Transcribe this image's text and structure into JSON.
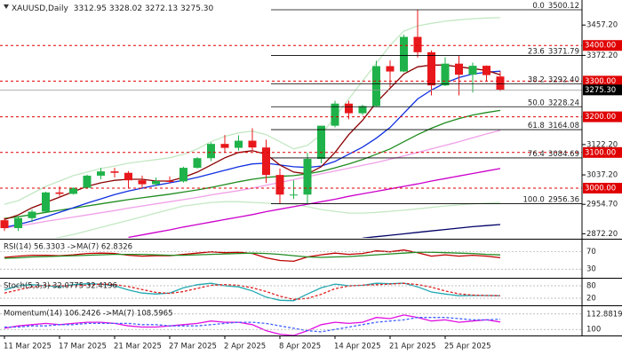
{
  "chart_data": [
    {
      "type": "candlestick",
      "title": "XAUUSD,Daily",
      "subtitle": "3312.95 3328.02 3272.13 3275.30",
      "categories": [
        "11 Mar 2025",
        null,
        null,
        null,
        "17 Mar 2025",
        null,
        null,
        null,
        "21 Mar 2025",
        null,
        null,
        null,
        "27 Mar 2025",
        null,
        null,
        null,
        "2 Apr 2025",
        null,
        null,
        null,
        "8 Apr 2025",
        null,
        null,
        null,
        "14 Apr 2025",
        null,
        null,
        null,
        "21 Apr 2025",
        null,
        null,
        null,
        "25 Apr 2025",
        null,
        null,
        null,
        null
      ],
      "open": [
        2910,
        2888,
        2916,
        2934,
        2988,
        2984,
        3001,
        3035,
        3047,
        3043,
        3022,
        3011,
        3020,
        3019,
        3057,
        3084,
        3124,
        3113,
        3133,
        3114,
        3037,
        2982,
        2982,
        3082,
        3175,
        3237,
        3210,
        3230,
        3342,
        3327,
        3424,
        3381,
        3288,
        3349,
        3318,
        3343,
        3312.95
      ],
      "high": [
        2917,
        2922,
        2940,
        2990,
        3005,
        3002,
        3038,
        3057,
        3057,
        3048,
        3035,
        3030,
        3033,
        3060,
        3087,
        3128,
        3149,
        3148,
        3168,
        3136,
        3055,
        3022,
        3099,
        3175,
        3245,
        3245,
        3234,
        3357,
        3358,
        3430,
        3500.12,
        3386,
        3367,
        3371,
        3352,
        3344,
        3328.02
      ],
      "low": [
        2880,
        2880,
        2905,
        2930,
        2978,
        2982,
        2998,
        3025,
        3030,
        2999,
        3000,
        3006,
        3013,
        3016,
        3055,
        3076,
        3100,
        3105,
        3104,
        3015,
        2957,
        2970,
        2957,
        3070,
        3170,
        3193,
        3205,
        3229,
        3283,
        3325,
        3366,
        3260,
        3286,
        3260,
        3268,
        3300,
        3272.13
      ],
      "close": [
        2888,
        2916,
        2934,
        2988,
        2984,
        3001,
        3035,
        3047,
        3043,
        3022,
        3011,
        3020,
        3019,
        3057,
        3084,
        3124,
        3113,
        3133,
        3114,
        3037,
        2982,
        2982,
        3082,
        3175,
        3237,
        3210,
        3230,
        3342,
        3327,
        3424,
        3381,
        3288,
        3349,
        3318,
        3343,
        3317,
        3275.3
      ],
      "up_color": "#1fb24a",
      "down_color": "#e8171b",
      "series": [
        {
          "color": "#c4e8c4",
          "values": [
            2955,
            2965,
            2985,
            3005,
            3020,
            3035,
            3045,
            3055,
            3062,
            3070,
            3075,
            3080,
            3085,
            3095,
            3110,
            3130,
            3145,
            3155,
            3160,
            3150,
            3130,
            3110,
            3120,
            3150,
            3200,
            3250,
            3300,
            3350,
            3400,
            3440,
            3455,
            3462,
            3468,
            3472,
            3475,
            3477,
            3478
          ]
        },
        {
          "color": "#c4e8c4",
          "values": [
            2842,
            2845,
            2850,
            2855,
            2862,
            2870,
            2880,
            2890,
            2900,
            2910,
            2920,
            2930,
            2940,
            2950,
            2955,
            2960,
            2962,
            2962,
            2960,
            2958,
            2956,
            2955,
            2948,
            2940,
            2935,
            2930,
            2930,
            2932,
            2935,
            2938,
            2942,
            2946,
            2950,
            2953,
            2956,
            2958,
            2960
          ]
        },
        {
          "color": "#000066",
          "values": [
            null,
            null,
            null,
            null,
            null,
            null,
            null,
            null,
            null,
            null,
            null,
            null,
            null,
            null,
            null,
            null,
            null,
            null,
            null,
            null,
            null,
            null,
            null,
            null,
            null,
            null,
            2860,
            2864,
            2868,
            2872,
            2876,
            2880,
            2884,
            2888,
            2892,
            2895,
            2898
          ]
        },
        {
          "color": "#cc00cc",
          "values": [
            null,
            null,
            null,
            null,
            null,
            null,
            null,
            null,
            null,
            2862,
            2869,
            2876,
            2883,
            2891,
            2898,
            2905,
            2912,
            2919,
            2926,
            2934,
            2941,
            2948,
            2955,
            2962,
            2969,
            2977,
            2984,
            2991,
            2998,
            3005,
            3012,
            3020,
            3027,
            3034,
            3041,
            3048,
            3055
          ]
        },
        {
          "color": "#f0a0e8",
          "values": [
            2888,
            2894,
            2900,
            2907,
            2913,
            2919,
            2925,
            2931,
            2937,
            2944,
            2950,
            2956,
            2962,
            2968,
            2974,
            2981,
            2987,
            2993,
            3000,
            3008,
            3016,
            3024,
            3032,
            3040,
            3048,
            3056,
            3064,
            3072,
            3081,
            3090,
            3100,
            3110,
            3120,
            3130,
            3141,
            3152,
            3162
          ]
        },
        {
          "color": "#1f8c1f",
          "values": [
            2915,
            2920,
            2926,
            2932,
            2938,
            2944,
            2950,
            2956,
            2962,
            2968,
            2973,
            2978,
            2983,
            2989,
            2995,
            3002,
            3010,
            3018,
            3025,
            3030,
            3033,
            3035,
            3040,
            3047,
            3057,
            3068,
            3080,
            3095,
            3110,
            3130,
            3150,
            3168,
            3183,
            3195,
            3205,
            3212,
            3218
          ]
        },
        {
          "color": "#1030e0",
          "values": [
            2890,
            2898,
            2908,
            2920,
            2932,
            2945,
            2958,
            2970,
            2982,
            2992,
            3000,
            3008,
            3015,
            3022,
            3030,
            3040,
            3050,
            3060,
            3068,
            3070,
            3065,
            3060,
            3058,
            3062,
            3075,
            3095,
            3115,
            3140,
            3170,
            3210,
            3250,
            3275,
            3295,
            3310,
            3320,
            3325,
            3328
          ]
        },
        {
          "color": "#8b0000",
          "values": [
            2912,
            2925,
            2945,
            2960,
            2975,
            2990,
            3005,
            3015,
            3022,
            3025,
            3025,
            3020,
            3020,
            3030,
            3045,
            3065,
            3085,
            3100,
            3105,
            3095,
            3065,
            3045,
            3040,
            3060,
            3100,
            3150,
            3190,
            3240,
            3280,
            3320,
            3340,
            3345,
            3345,
            3340,
            3335,
            3330,
            3318
          ]
        }
      ],
      "fib_levels": [
        {
          "ratio": "0.0",
          "value": 3500.12,
          "label": "3500.12"
        },
        {
          "ratio": "23.6",
          "value": 3371.79,
          "label": "3371.79"
        },
        {
          "ratio": "38.2",
          "value": 3292.4,
          "label": "3292.40"
        },
        {
          "ratio": "50.0",
          "value": 3228.24,
          "label": "3228.24"
        },
        {
          "ratio": "61.8",
          "value": 3164.08,
          "label": "3164.08"
        },
        {
          "ratio": "76.4",
          "value": 3084.69,
          "label": "3084.69"
        },
        {
          "ratio": "100.0",
          "value": 2956.36,
          "label": "2956.36"
        }
      ],
      "levels": [
        {
          "value": 3400,
          "label": "3400.00"
        },
        {
          "value": 3300,
          "label": "3300.00"
        },
        {
          "value": 3200,
          "label": "3200.00"
        },
        {
          "value": 3100,
          "label": "3100.00"
        },
        {
          "value": 3000,
          "label": "3000.00"
        }
      ],
      "level_color": "#e00000",
      "last": {
        "value": 3275.3,
        "label": "3275.30"
      },
      "ylim": [
        2860.7,
        3527.4
      ],
      "yticks": [
        {
          "value": 3457.2,
          "label": "3457.20"
        },
        {
          "value": 3372.2,
          "label": "3372.20"
        },
        {
          "value": 3122.2,
          "label": "3122.20"
        },
        {
          "value": 3037.2,
          "label": "3037.20"
        },
        {
          "value": 2954.7,
          "label": "2954.70"
        },
        {
          "value": 2872.2,
          "label": "2872.20"
        }
      ]
    },
    {
      "type": "line",
      "title": "RSI(14) 56.3303 ->MA(7) 62.8326",
      "ylim": [
        12,
        96
      ],
      "yticks": [
        70,
        30
      ],
      "series": [
        {
          "color": "#c00000",
          "values": [
            57,
            60,
            62,
            62,
            61,
            63,
            66,
            67,
            66,
            62,
            60,
            61,
            61,
            64,
            67,
            70,
            68,
            69,
            66,
            56,
            50,
            48,
            58,
            63,
            67,
            64,
            66,
            72,
            70,
            74,
            68,
            60,
            63,
            60,
            62,
            60,
            56.3303
          ]
        },
        {
          "color": "#228b22",
          "values": [
            55,
            56,
            58,
            59,
            60,
            61,
            62,
            63,
            64,
            64,
            64,
            63,
            62,
            62,
            63,
            64,
            65,
            66,
            67,
            66,
            64,
            61,
            58,
            57,
            58,
            59,
            61,
            63,
            65,
            67,
            69,
            69,
            68,
            67,
            66,
            64,
            62.8326
          ]
        }
      ]
    },
    {
      "type": "line",
      "title": "Stoch(5,3,3) 32.0775 32.4196",
      "ylim": [
        -10,
        110
      ],
      "yticks": [
        80,
        20
      ],
      "series": [
        {
          "color": "#20a8b0",
          "values": [
            60,
            80,
            85,
            80,
            75,
            85,
            90,
            88,
            80,
            60,
            45,
            40,
            45,
            70,
            85,
            92,
            80,
            75,
            55,
            25,
            10,
            8,
            40,
            70,
            88,
            80,
            82,
            92,
            90,
            93,
            75,
            50,
            40,
            32,
            33,
            33,
            32.0775
          ]
        },
        {
          "color": "#e02020",
          "dash": true,
          "values": [
            45,
            60,
            75,
            82,
            80,
            80,
            83,
            88,
            86,
            76,
            62,
            48,
            43,
            52,
            67,
            82,
            86,
            82,
            70,
            52,
            30,
            14,
            19,
            39,
            66,
            79,
            83,
            85,
            88,
            92,
            86,
            73,
            55,
            41,
            35,
            33,
            32.4196
          ]
        }
      ]
    },
    {
      "type": "line",
      "title": "Momentum(14) 106.2426 ->MA(7) 108.5965",
      "ylim": [
        95,
        118.6
      ],
      "yticks": [
        112.8819,
        100
      ],
      "series": [
        {
          "color": "#e010e0",
          "values": [
            101,
            103,
            104,
            105,
            104,
            105,
            106,
            106,
            105,
            103,
            102,
            102,
            103,
            104,
            105,
            107,
            106,
            106,
            104,
            99,
            96,
            95,
            99,
            104,
            106,
            105,
            106,
            110,
            109,
            112,
            110,
            107,
            108,
            106,
            107,
            108,
            106.2426
          ]
        },
        {
          "color": "#4060ff",
          "dash": true,
          "values": [
            102,
            102,
            103,
            103,
            104,
            104,
            105,
            105,
            105,
            105,
            104,
            104,
            103,
            103,
            103,
            104,
            105,
            106,
            106,
            105,
            103,
            101,
            99,
            98,
            100,
            102,
            104,
            106,
            107,
            108,
            110,
            110,
            110,
            109,
            108,
            108,
            108.5965
          ]
        }
      ]
    }
  ]
}
